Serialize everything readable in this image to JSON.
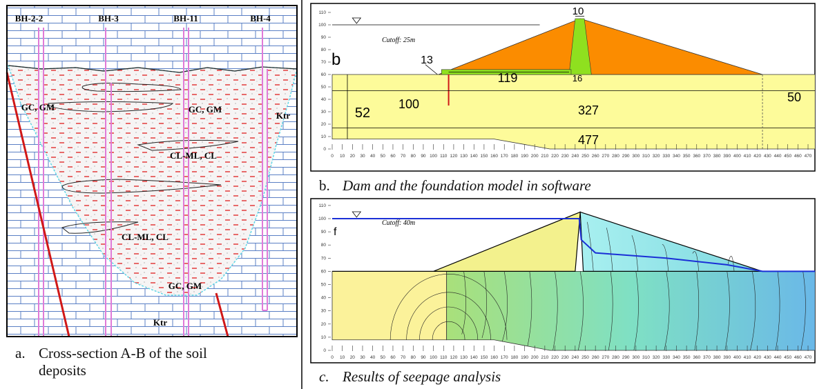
{
  "panel_a": {
    "boreholes": [
      "BH-2-2",
      "BH-3",
      "BH-11",
      "BH-4"
    ],
    "labels": [
      "GC, GM",
      "GC, GM",
      "Ktr",
      "CL-ML, CL",
      "CL-ML, CL",
      "GC, GM",
      "Ktr"
    ],
    "caption_letter": "a.",
    "caption": "Cross-section A-B of the soil deposits"
  },
  "panel_b": {
    "yticks": [
      0,
      10,
      20,
      30,
      40,
      50,
      60,
      70,
      80,
      90,
      100,
      110
    ],
    "xticks": [
      0,
      10,
      20,
      30,
      40,
      50,
      60,
      70,
      80,
      90,
      100,
      110,
      120,
      130,
      140,
      150,
      160,
      170,
      180,
      190,
      200,
      210,
      220,
      230,
      240,
      250,
      260,
      270,
      280,
      290,
      300,
      310,
      320,
      330,
      340,
      350,
      360,
      370,
      380,
      390,
      400,
      410,
      420,
      430,
      440,
      450,
      460,
      470
    ],
    "cutoff": "Cutoff: 25m",
    "label": "b",
    "dimensions": [
      10,
      13,
      119,
      16,
      100,
      327,
      50,
      52,
      477
    ],
    "caption_letter": "b.",
    "caption": "Dam and the foundation model in software"
  },
  "panel_c": {
    "yticks": [
      0,
      10,
      20,
      30,
      40,
      50,
      60,
      70,
      80,
      90,
      100,
      110
    ],
    "xticks": [
      0,
      10,
      20,
      30,
      40,
      50,
      60,
      70,
      80,
      90,
      100,
      110,
      120,
      130,
      140,
      150,
      160,
      170,
      180,
      190,
      200,
      210,
      220,
      230,
      240,
      250,
      260,
      270,
      280,
      290,
      300,
      310,
      320,
      330,
      340,
      350,
      360,
      370,
      380,
      390,
      400,
      410,
      420,
      430,
      440,
      450,
      460,
      470
    ],
    "cutoff": "Cutoff: 40m",
    "label": "f",
    "caption_letter": "c.",
    "caption": "Results of seepage analysis"
  }
}
